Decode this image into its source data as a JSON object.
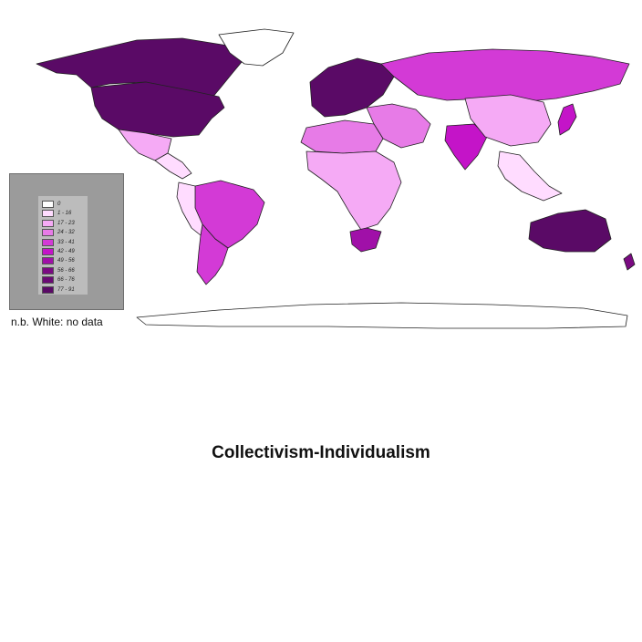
{
  "map": {
    "fill_colors": {
      "no_data": "#ffffff",
      "c1": "#ffdcff",
      "c2": "#f5aaf5",
      "c3": "#e77be7",
      "c4": "#d33ad6",
      "c5": "#c414c8",
      "c6": "#a010a8",
      "c7": "#7a0a82",
      "c8": "#5a0a66"
    },
    "ocean_color": "#ffffff",
    "legend_bg": "#9b9b9b",
    "regions": [
      {
        "name": "Canada",
        "class": "c8"
      },
      {
        "name": "United States",
        "class": "c8"
      },
      {
        "name": "Greenland",
        "class": "no_data"
      },
      {
        "name": "Mexico",
        "class": "c2"
      },
      {
        "name": "Central America",
        "class": "c1"
      },
      {
        "name": "Brazil",
        "class": "c4"
      },
      {
        "name": "Argentina",
        "class": "c4"
      },
      {
        "name": "Western South America",
        "class": "c1"
      },
      {
        "name": "Europe",
        "class": "c8"
      },
      {
        "name": "Russia",
        "class": "c4"
      },
      {
        "name": "Middle East",
        "class": "c3"
      },
      {
        "name": "North Africa",
        "class": "c3"
      },
      {
        "name": "Sub-Saharan Africa",
        "class": "c2"
      },
      {
        "name": "South Africa",
        "class": "c6"
      },
      {
        "name": "India",
        "class": "c5"
      },
      {
        "name": "China",
        "class": "c2"
      },
      {
        "name": "Southeast Asia",
        "class": "c1"
      },
      {
        "name": "Japan",
        "class": "c5"
      },
      {
        "name": "Australia",
        "class": "c8"
      },
      {
        "name": "New Zealand",
        "class": "c7"
      },
      {
        "name": "Antarctica",
        "class": "no_data"
      }
    ]
  },
  "legend": {
    "items": [
      {
        "label": "0",
        "color": "#ffffff"
      },
      {
        "label": "1 - 16",
        "color": "#ffdcff"
      },
      {
        "label": "17 - 23",
        "color": "#f5aaf5"
      },
      {
        "label": "24 - 32",
        "color": "#e77be7"
      },
      {
        "label": "33 - 41",
        "color": "#d33ad6"
      },
      {
        "label": "42 - 49",
        "color": "#c414c8"
      },
      {
        "label": "49 - 56",
        "color": "#a010a8"
      },
      {
        "label": "56 - 66",
        "color": "#7a0a82"
      },
      {
        "label": "66 - 76",
        "color": "#6a0a74"
      },
      {
        "label": "77 - 91",
        "color": "#5a0a66"
      }
    ]
  },
  "note": "n.b. White: no data",
  "caption": "Collectivism-Individualism"
}
